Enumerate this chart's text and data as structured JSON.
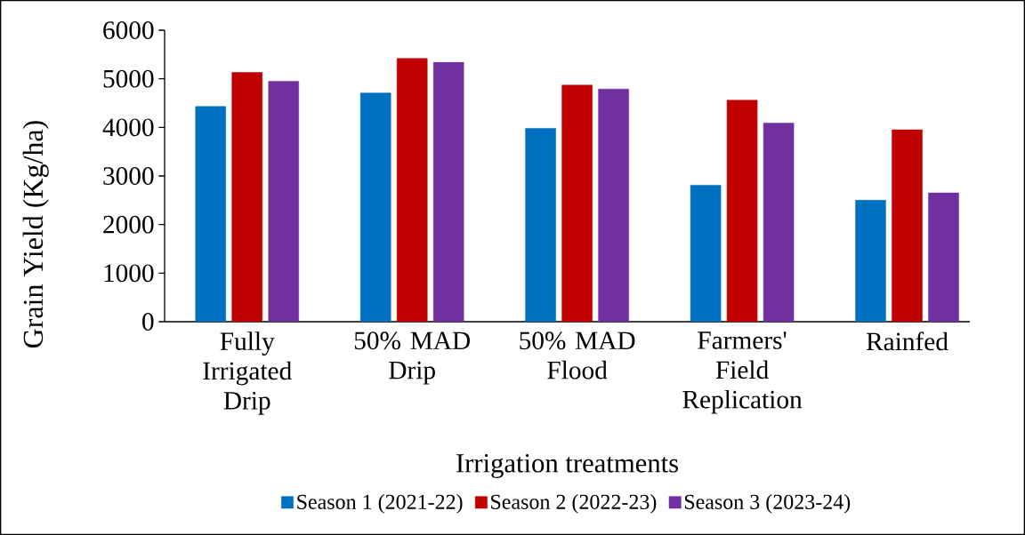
{
  "chart_data": {
    "type": "bar",
    "xlabel": "Irrigation treatments",
    "ylabel": "Grain Yield (Kg/ha)",
    "categories": [
      "Fully Irrigated Drip",
      "50% MAD Drip",
      "50% MAD Flood",
      "Farmers' Field Replication",
      "Rainfed"
    ],
    "series": [
      {
        "name": "Season 1 (2021-22)",
        "color": "#0070c0",
        "values": [
          4430,
          4710,
          3980,
          2810,
          2500
        ]
      },
      {
        "name": "Season 2 (2022-23)",
        "color": "#c00000",
        "values": [
          5130,
          5420,
          4870,
          4560,
          3950
        ]
      },
      {
        "name": "Season 3 (2023-24)",
        "color": "#7030a0",
        "values": [
          4950,
          5340,
          4790,
          4090,
          2650
        ]
      }
    ],
    "ylim": [
      0,
      6000
    ],
    "yticks": [
      0,
      1000,
      2000,
      3000,
      4000,
      5000,
      6000
    ],
    "legend": "bottom"
  }
}
